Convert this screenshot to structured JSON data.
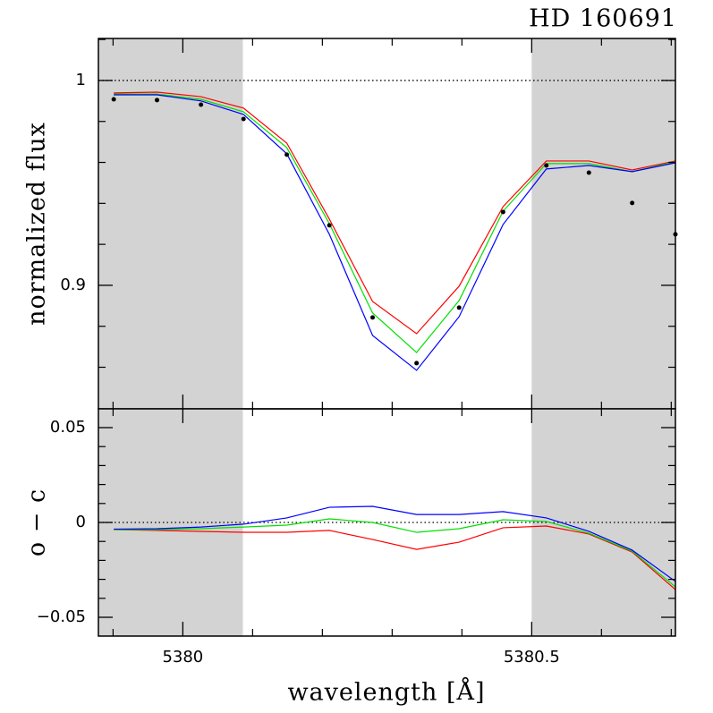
{
  "chart_data": [
    {
      "type": "line",
      "title": "HD 160691",
      "ylabel": "normalized flux",
      "x": [
        5379.901,
        5379.963,
        5380.026,
        5380.087,
        5380.149,
        5380.21,
        5380.272,
        5380.335,
        5380.396,
        5380.459,
        5380.521,
        5380.582,
        5380.644,
        5380.706
      ],
      "series": [
        {
          "color": "#ff0000",
          "values": [
            0.9939,
            0.9943,
            0.9921,
            0.9865,
            0.9694,
            0.9323,
            0.8921,
            0.8764,
            0.8996,
            0.9384,
            0.9607,
            0.9607,
            0.9563,
            0.9607
          ]
        },
        {
          "color": "#00e000",
          "values": [
            0.9934,
            0.9934,
            0.9908,
            0.9847,
            0.9672,
            0.9301,
            0.8865,
            0.8672,
            0.8926,
            0.9362,
            0.9594,
            0.9594,
            0.9555,
            0.9603
          ]
        },
        {
          "color": "#0000ff",
          "values": [
            0.993,
            0.993,
            0.99,
            0.9834,
            0.9642,
            0.9249,
            0.8755,
            0.8585,
            0.8847,
            0.9297,
            0.9568,
            0.9585,
            0.9555,
            0.9598
          ]
        },
        {
          "type": "scatter",
          "color": "#000000",
          "values": [
            0.9908,
            0.9904,
            0.9882,
            0.9812,
            0.9638,
            0.9293,
            0.8843,
            0.862,
            0.8891,
            0.9358,
            0.9585,
            0.955,
            0.9402,
            0.9249
          ]
        }
      ],
      "xlim": [
        5379.879,
        5380.706
      ],
      "ylim": [
        0.8397,
        1.0205
      ],
      "yticks": [
        0.9,
        1
      ],
      "yminor": [
        0.86,
        0.88,
        0.92,
        0.94,
        0.96,
        0.98,
        1.02
      ],
      "xminor": [
        5379.9,
        5380.1,
        5380.2,
        5380.3,
        5380.4,
        5380.6,
        5380.7
      ],
      "xticks": [
        5380,
        5380.5
      ],
      "hline": 1,
      "shaded": [
        [
          5379.879,
          5380.086
        ],
        [
          5380.5,
          5380.706
        ]
      ],
      "shade_color": "#d3d3d3"
    },
    {
      "type": "line",
      "ylabel": "o − c",
      "xlabel": "wavelength [Å]",
      "x": [
        5379.901,
        5379.963,
        5380.026,
        5380.087,
        5380.149,
        5380.21,
        5380.272,
        5380.335,
        5380.396,
        5380.459,
        5380.521,
        5380.582,
        5380.644,
        5380.706
      ],
      "series": [
        {
          "color": "#ff0000",
          "values": [
            -0.0038,
            -0.0042,
            -0.0047,
            -0.0052,
            -0.0052,
            -0.0042,
            -0.009,
            -0.0142,
            -0.0104,
            -0.0028,
            -0.0019,
            -0.0061,
            -0.0156,
            -0.0354
          ]
        },
        {
          "color": "#00e000",
          "values": [
            -0.0038,
            -0.0038,
            -0.0033,
            -0.0024,
            -0.0014,
            0.0019,
            0,
            -0.0052,
            -0.0033,
            0.0014,
            0.0005,
            -0.0057,
            -0.0151,
            -0.034
          ]
        },
        {
          "color": "#0000ff",
          "values": [
            -0.0035,
            -0.0033,
            -0.0024,
            -0.0009,
            0.0024,
            0.008,
            0.0085,
            0.0042,
            0.0042,
            0.0057,
            0.0024,
            -0.0047,
            -0.0146,
            -0.0311
          ]
        }
      ],
      "xlim": [
        5379.879,
        5380.706
      ],
      "ylim": [
        -0.0599,
        0.0599
      ],
      "xticks": [
        5380,
        5380.5
      ],
      "xminor": [
        5379.9,
        5380.1,
        5380.2,
        5380.3,
        5380.4,
        5380.6,
        5380.7
      ],
      "yticks": [
        {
          "value": -0.05,
          "label": "−0.05"
        },
        0,
        0.05
      ],
      "yminor": [
        -0.04,
        -0.03,
        -0.02,
        -0.01,
        0.01,
        0.02,
        0.03,
        0.04
      ],
      "hline": 0,
      "shaded": [
        [
          5379.879,
          5380.086
        ],
        [
          5380.5,
          5380.706
        ]
      ],
      "shade_color": "#d3d3d3"
    }
  ]
}
